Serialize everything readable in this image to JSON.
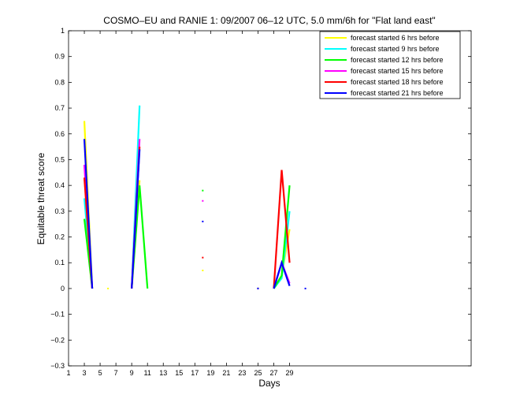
{
  "chart_data": {
    "type": "line",
    "title": "COSMO–EU and RANIE 1: 09/2007 06–12 UTC, 5.0 mm/6h for \"Flat land east\"",
    "xlabel": "Days",
    "ylabel": "Equitable threat score",
    "xlim": [
      1,
      52
    ],
    "ylim": [
      -0.3,
      1
    ],
    "xticks": [
      "1",
      "3",
      "5",
      "7",
      "9",
      "11",
      "13",
      "15",
      "17",
      "19",
      "21",
      "23",
      "25",
      "27",
      "29"
    ],
    "yticks": [
      "−0.3",
      "−0.2",
      "−0.1",
      "0",
      "0.1",
      "0.2",
      "0.3",
      "0.4",
      "0.5",
      "0.6",
      "0.7",
      "0.8",
      "0.9",
      "1"
    ],
    "grid": false,
    "legend_position": "top-right",
    "series": [
      {
        "name": "forecast started 6 hrs before",
        "color": "#ffff00",
        "points": [
          [
            3,
            0.65
          ],
          [
            4,
            0.0
          ],
          [
            6,
            0.0
          ],
          [
            9,
            0.0
          ],
          [
            10,
            0.42
          ],
          [
            18,
            0.07
          ],
          [
            25,
            0.0
          ],
          [
            27,
            0.0
          ],
          [
            28,
            0.05
          ],
          [
            29,
            0.23
          ]
        ]
      },
      {
        "name": "forecast started 9 hrs before",
        "color": "#00ffff",
        "points": [
          [
            3,
            0.35
          ],
          [
            4,
            0.0
          ],
          [
            9,
            0.0
          ],
          [
            10,
            0.71
          ],
          [
            25,
            0.0
          ],
          [
            27,
            0.0
          ],
          [
            28,
            0.04
          ],
          [
            29,
            0.3
          ]
        ]
      },
      {
        "name": "forecast started 12 hrs before",
        "color": "#00ff00",
        "points": [
          [
            3,
            0.27
          ],
          [
            4,
            0.0
          ],
          [
            9,
            0.0
          ],
          [
            10,
            0.4
          ],
          [
            11,
            0.0
          ],
          [
            18,
            0.38
          ],
          [
            25,
            0.0
          ],
          [
            27,
            0.0
          ],
          [
            28,
            0.05
          ],
          [
            29,
            0.4
          ]
        ]
      },
      {
        "name": "forecast started 15 hrs before",
        "color": "#ff00ff",
        "points": [
          [
            3,
            0.48
          ],
          [
            4,
            0.0
          ],
          [
            9,
            0.0
          ],
          [
            10,
            0.58
          ],
          [
            18,
            0.34
          ],
          [
            25,
            0.0
          ],
          [
            27,
            0.0
          ],
          [
            28,
            0.1
          ],
          [
            29,
            0.02
          ]
        ]
      },
      {
        "name": "forecast started 18 hrs before",
        "color": "#ff0000",
        "points": [
          [
            3,
            0.43
          ],
          [
            4,
            0.0
          ],
          [
            9,
            0.0
          ],
          [
            10,
            0.55
          ],
          [
            18,
            0.12
          ],
          [
            25,
            0.0
          ],
          [
            27,
            0.0
          ],
          [
            28,
            0.46
          ],
          [
            29,
            0.1
          ]
        ]
      },
      {
        "name": "forecast started 21 hrs before",
        "color": "#0000ff",
        "points": [
          [
            3,
            0.58
          ],
          [
            4,
            0.0
          ],
          [
            9,
            0.0
          ],
          [
            10,
            0.54
          ],
          [
            18,
            0.26
          ],
          [
            25,
            0.0
          ],
          [
            27,
            0.0
          ],
          [
            28,
            0.1
          ],
          [
            29,
            0.01
          ],
          [
            31,
            0.0
          ]
        ]
      }
    ]
  }
}
